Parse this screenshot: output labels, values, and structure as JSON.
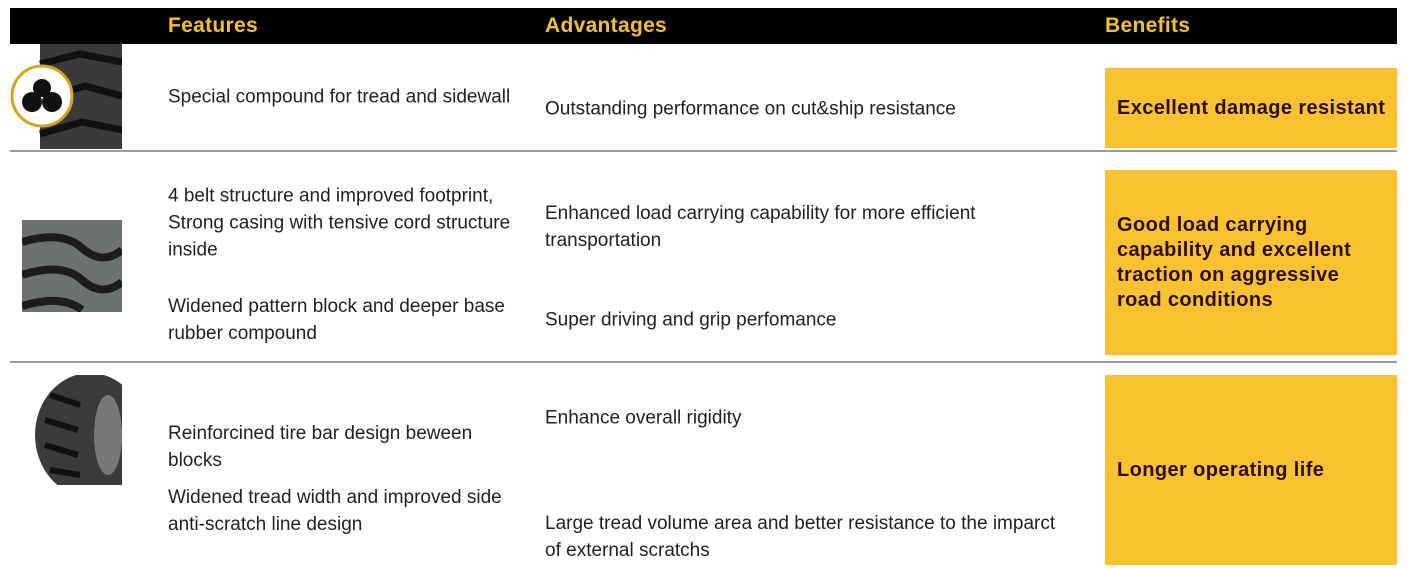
{
  "table": {
    "headers": [
      "Features",
      "Advantages",
      "Benefits"
    ],
    "rows": [
      {
        "items": [
          {
            "feature": "Special compound for tread and sidewall",
            "advantage": "Outstanding performance on cut&ship resistance"
          }
        ],
        "benefit": "Excellent damage resistant"
      },
      {
        "items": [
          {
            "feature": "4 belt structure and improved footprint, Strong casing with tensive cord structure inside",
            "advantage": "Enhanced load carrying capability for more efficient transportation"
          },
          {
            "feature": "Widened pattern block and deeper base rubber compound",
            "advantage": "Super driving and grip perfomance"
          }
        ],
        "benefit": "Good load carrying capability and excellent traction on aggressive road conditions"
      },
      {
        "items": [
          {
            "feature": "Reinforcined tire bar design beween blocks",
            "advantage": "Enhance overall rigidity"
          },
          {
            "feature": "Widened tread width and improved side anti-scratch line design",
            "advantage": "Large tread volume area and better resistance to the imparct of external scratchs"
          }
        ],
        "benefit": "Longer operating life"
      }
    ]
  }
}
